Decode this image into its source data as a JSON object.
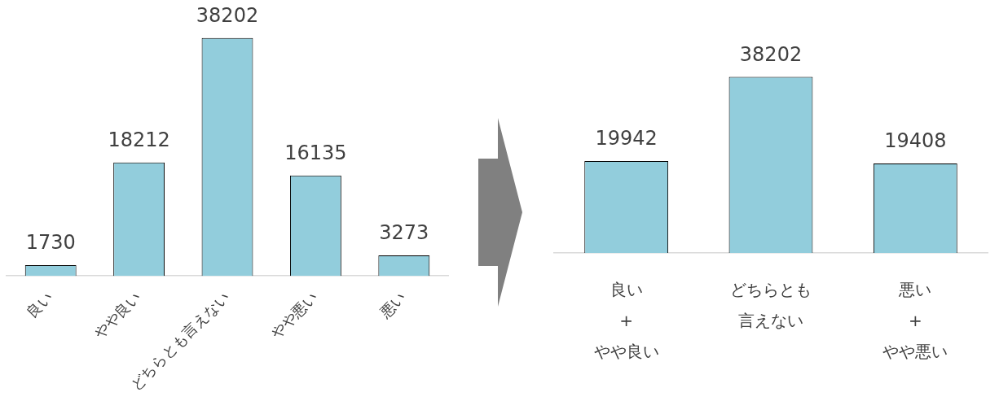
{
  "chart_data": [
    {
      "type": "bar",
      "categories": [
        "良い",
        "やや良い",
        "どちらとも言えない",
        "やや悪い",
        "悪い"
      ],
      "values": [
        1730,
        18212,
        38202,
        16135,
        3273
      ],
      "color": "#92cddc",
      "data_labels": true
    },
    {
      "type": "bar",
      "categories": [
        "良い\n+\nやや良い",
        "どちらとも言えない",
        "悪い\n+\nやや悪い"
      ],
      "values": [
        19942,
        38202,
        19408
      ],
      "color": "#92cddc",
      "data_labels": true
    }
  ]
}
